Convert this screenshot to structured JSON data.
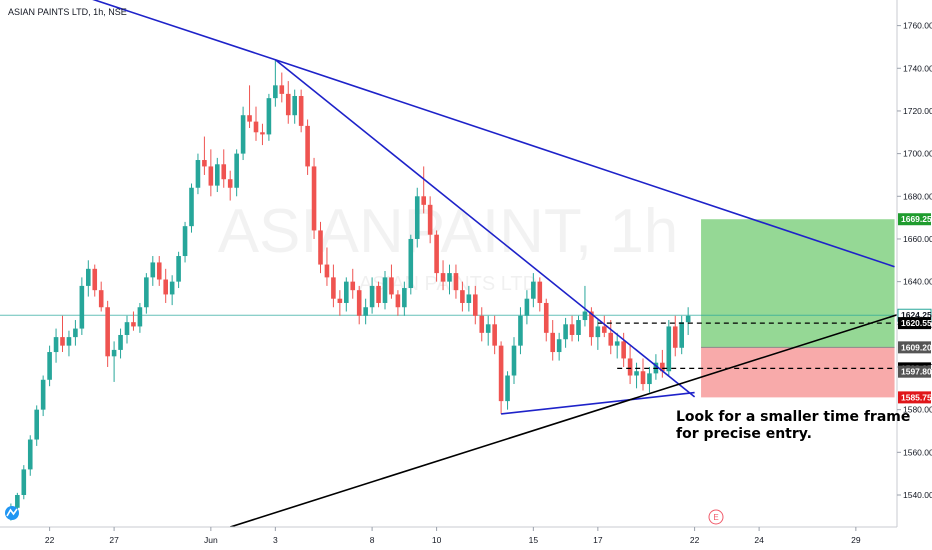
{
  "header": {
    "symbol_title": "ASIAN PAINTS LTD, 1h, NSE"
  },
  "watermark": {
    "ticker": "ASIANPAINT, 1h",
    "subtitle": "ASIAN PAINTS LTD"
  },
  "annotation": {
    "text": "Look for a smaller time frame\nfor precise entry."
  },
  "event_marker": {
    "label": "E"
  },
  "colors": {
    "up": "#26a69a",
    "down": "#ef5350",
    "trendline": "#1e22c9",
    "support": "#000000",
    "profit_zone": "#8fd68f",
    "loss_zone": "#f8a5a5",
    "current_price_line": "#26a69a",
    "target_tag": "#1f9c2e",
    "stop_tag": "#e0161a"
  },
  "chart_data": {
    "type": "candlestick",
    "timeframe": "1h",
    "ylim": [
      1525,
      1772
    ],
    "y_ticks": [
      1540,
      1560,
      1580,
      1600,
      1620,
      1640,
      1660,
      1680,
      1700,
      1720,
      1740,
      1760
    ],
    "y_tick_labels": [
      "1540.00",
      "1560.00",
      "1580.00",
      "1600.00",
      "1620.00",
      "1640.00",
      "1660.00",
      "1680.00",
      "1700.00",
      "1720.00",
      "1740.00",
      "1760.00"
    ],
    "x_tick_labels": [
      {
        "label": "22",
        "bar": 6
      },
      {
        "label": "27",
        "bar": 16
      },
      {
        "label": "Jun",
        "bar": 31
      },
      {
        "label": "3",
        "bar": 41
      },
      {
        "label": "8",
        "bar": 56
      },
      {
        "label": "10",
        "bar": 66
      },
      {
        "label": "15",
        "bar": 81
      },
      {
        "label": "17",
        "bar": 91
      },
      {
        "label": "22",
        "bar": 106
      },
      {
        "label": "24",
        "bar": 116
      },
      {
        "label": "29",
        "bar": 131
      }
    ],
    "price_tags": [
      {
        "label": "1669.25",
        "value": 1669.25,
        "style": "target"
      },
      {
        "label": "1624.25",
        "value": 1624.25,
        "style": "current"
      },
      {
        "label": "1620.55",
        "value": 1620.55,
        "style": "dark"
      },
      {
        "label": "1609.20",
        "value": 1609.2,
        "style": "gray"
      },
      {
        "label": "1599.35",
        "value": 1599.35,
        "style": "dark"
      },
      {
        "label": "1597.80",
        "value": 1597.8,
        "style": "gray"
      },
      {
        "label": "1585.75",
        "value": 1585.75,
        "style": "stop"
      }
    ],
    "current_price": 1624.25,
    "position": {
      "entry": 1609.2,
      "target": 1669.25,
      "stop": 1585.75,
      "bar_start": 107,
      "bar_end": 137
    },
    "levels": [
      {
        "value": 1620.55,
        "bar_start": 91,
        "bar_end": 137
      },
      {
        "value": 1599.35,
        "bar_start": 94,
        "bar_end": 137
      }
    ],
    "trendlines": [
      {
        "name": "upper-resistance",
        "p1": {
          "bar": 11,
          "value": 1774
        },
        "p2": {
          "bar": 41,
          "value": 1744
        },
        "p3": {
          "bar": 137,
          "value": 1647
        },
        "color": "trendline"
      },
      {
        "name": "falling-resistance",
        "p1": {
          "bar": 41,
          "value": 1744
        },
        "p2": {
          "bar": 106,
          "value": 1586
        },
        "color": "trendline"
      },
      {
        "name": "rising-base",
        "p1": {
          "bar": 76,
          "value": 1578
        },
        "p2": {
          "bar": 106,
          "value": 1588
        },
        "color": "trendline"
      },
      {
        "name": "long-support",
        "p1": {
          "bar": 34,
          "value": 1525
        },
        "p2": {
          "bar": 139,
          "value": 1626
        },
        "color": "support"
      }
    ],
    "candles": [
      [
        1532,
        1536,
        1528,
        1534
      ],
      [
        1534,
        1541,
        1532,
        1540
      ],
      [
        1540,
        1554,
        1538,
        1552
      ],
      [
        1552,
        1568,
        1549,
        1566
      ],
      [
        1566,
        1582,
        1563,
        1580
      ],
      [
        1580,
        1596,
        1577,
        1594
      ],
      [
        1594,
        1610,
        1591,
        1607
      ],
      [
        1607,
        1618,
        1602,
        1614
      ],
      [
        1614,
        1624,
        1607,
        1610
      ],
      [
        1610,
        1617,
        1605,
        1614
      ],
      [
        1614,
        1622,
        1610,
        1618
      ],
      [
        1618,
        1642,
        1615,
        1638
      ],
      [
        1638,
        1650,
        1633,
        1646
      ],
      [
        1646,
        1648,
        1633,
        1636
      ],
      [
        1636,
        1640,
        1626,
        1628
      ],
      [
        1628,
        1631,
        1600,
        1605
      ],
      [
        1605,
        1612,
        1593,
        1608
      ],
      [
        1608,
        1618,
        1604,
        1615
      ],
      [
        1615,
        1624,
        1611,
        1621
      ],
      [
        1621,
        1626,
        1617,
        1619
      ],
      [
        1619,
        1630,
        1616,
        1628
      ],
      [
        1628,
        1644,
        1625,
        1642
      ],
      [
        1642,
        1652,
        1638,
        1649
      ],
      [
        1649,
        1652,
        1638,
        1641
      ],
      [
        1641,
        1646,
        1630,
        1634
      ],
      [
        1634,
        1643,
        1629,
        1640
      ],
      [
        1640,
        1654,
        1637,
        1652
      ],
      [
        1652,
        1668,
        1649,
        1666
      ],
      [
        1666,
        1686,
        1663,
        1684
      ],
      [
        1684,
        1700,
        1681,
        1697
      ],
      [
        1697,
        1708,
        1690,
        1694
      ],
      [
        1694,
        1702,
        1680,
        1685
      ],
      [
        1685,
        1698,
        1682,
        1695
      ],
      [
        1695,
        1702,
        1684,
        1688
      ],
      [
        1688,
        1692,
        1678,
        1684
      ],
      [
        1684,
        1702,
        1680,
        1700
      ],
      [
        1700,
        1722,
        1697,
        1718
      ],
      [
        1718,
        1732,
        1712,
        1715
      ],
      [
        1715,
        1722,
        1706,
        1710
      ],
      [
        1710,
        1714,
        1704,
        1709
      ],
      [
        1709,
        1728,
        1706,
        1726
      ],
      [
        1726,
        1744,
        1722,
        1732
      ],
      [
        1732,
        1738,
        1724,
        1728
      ],
      [
        1728,
        1734,
        1714,
        1718
      ],
      [
        1718,
        1730,
        1714,
        1727
      ],
      [
        1727,
        1730,
        1710,
        1713
      ],
      [
        1713,
        1716,
        1690,
        1694
      ],
      [
        1694,
        1698,
        1660,
        1664
      ],
      [
        1664,
        1668,
        1644,
        1648
      ],
      [
        1648,
        1656,
        1638,
        1642
      ],
      [
        1642,
        1648,
        1628,
        1632
      ],
      [
        1632,
        1636,
        1624,
        1630
      ],
      [
        1630,
        1642,
        1626,
        1640
      ],
      [
        1640,
        1646,
        1632,
        1636
      ],
      [
        1636,
        1638,
        1620,
        1624
      ],
      [
        1624,
        1632,
        1620,
        1628
      ],
      [
        1628,
        1642,
        1625,
        1638
      ],
      [
        1638,
        1640,
        1628,
        1630
      ],
      [
        1630,
        1645,
        1627,
        1642
      ],
      [
        1642,
        1648,
        1632,
        1634
      ],
      [
        1634,
        1636,
        1624,
        1628
      ],
      [
        1628,
        1640,
        1624,
        1637
      ],
      [
        1637,
        1662,
        1634,
        1660
      ],
      [
        1660,
        1684,
        1656,
        1680
      ],
      [
        1680,
        1694,
        1672,
        1676
      ],
      [
        1676,
        1680,
        1658,
        1662
      ],
      [
        1662,
        1664,
        1640,
        1644
      ],
      [
        1644,
        1650,
        1636,
        1640
      ],
      [
        1640,
        1648,
        1634,
        1644
      ],
      [
        1644,
        1648,
        1632,
        1636
      ],
      [
        1636,
        1640,
        1626,
        1630
      ],
      [
        1630,
        1638,
        1626,
        1634
      ],
      [
        1634,
        1638,
        1620,
        1624
      ],
      [
        1624,
        1628,
        1612,
        1616
      ],
      [
        1616,
        1624,
        1610,
        1620
      ],
      [
        1620,
        1624,
        1606,
        1610
      ],
      [
        1610,
        1612,
        1578,
        1584
      ],
      [
        1584,
        1598,
        1580,
        1596
      ],
      [
        1596,
        1614,
        1592,
        1610
      ],
      [
        1610,
        1628,
        1606,
        1624
      ],
      [
        1624,
        1636,
        1620,
        1632
      ],
      [
        1632,
        1644,
        1628,
        1640
      ],
      [
        1640,
        1642,
        1626,
        1630
      ],
      [
        1630,
        1632,
        1612,
        1616
      ],
      [
        1616,
        1622,
        1603,
        1607
      ],
      [
        1607,
        1616,
        1603,
        1613
      ],
      [
        1613,
        1623,
        1609,
        1620
      ],
      [
        1620,
        1624,
        1612,
        1615
      ],
      [
        1615,
        1624,
        1612,
        1622
      ],
      [
        1622,
        1638,
        1619,
        1626
      ],
      [
        1626,
        1628,
        1610,
        1614
      ],
      [
        1614,
        1622,
        1608,
        1619
      ],
      [
        1619,
        1624,
        1614,
        1616
      ],
      [
        1616,
        1622,
        1606,
        1610
      ],
      [
        1610,
        1616,
        1604,
        1612
      ],
      [
        1612,
        1616,
        1600,
        1604
      ],
      [
        1604,
        1610,
        1592,
        1596
      ],
      [
        1596,
        1602,
        1590,
        1598
      ],
      [
        1598,
        1604,
        1589,
        1592
      ],
      [
        1592,
        1600,
        1588,
        1597
      ],
      [
        1597,
        1606,
        1594,
        1602
      ],
      [
        1602,
        1608,
        1595,
        1598
      ],
      [
        1598,
        1622,
        1596,
        1619
      ],
      [
        1619,
        1624,
        1605,
        1609
      ],
      [
        1609,
        1624,
        1606,
        1621
      ],
      [
        1621,
        1628,
        1615,
        1624
      ]
    ]
  }
}
